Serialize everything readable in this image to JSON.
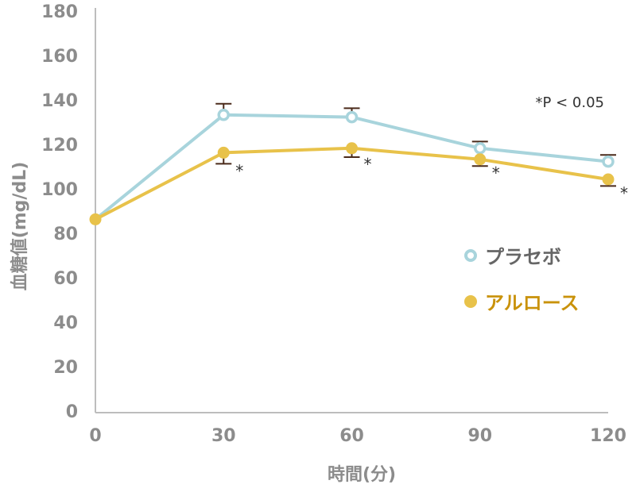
{
  "chart_data": {
    "type": "line",
    "xlabel": "時間(分)",
    "ylabel": "血糖値(mg/dL)",
    "x": [
      0,
      30,
      60,
      90,
      120
    ],
    "xticks": [
      "0",
      "30",
      "60",
      "90",
      "120"
    ],
    "yticks": [
      "0",
      "20",
      "40",
      "60",
      "80",
      "100",
      "120",
      "140",
      "160",
      "180"
    ],
    "xlim": [
      0,
      120
    ],
    "ylim": [
      0,
      180
    ],
    "grid": false,
    "legend_position": "right",
    "annotation": "*P < 0.05",
    "significance_marker": "*",
    "significant_x": [
      30,
      60,
      90,
      120
    ],
    "series": [
      {
        "name": "プラセボ",
        "values": [
          87,
          134,
          133,
          119,
          113
        ],
        "error": [
          0,
          5,
          4,
          3,
          3
        ],
        "error_direction": "up",
        "color": "#a8d4dc",
        "marker": "open-circle"
      },
      {
        "name": "アルロース",
        "values": [
          87,
          117,
          119,
          114,
          105
        ],
        "error": [
          0,
          5,
          4,
          3,
          3
        ],
        "error_direction": "down",
        "color": "#e8c24a",
        "marker": "filled-circle"
      }
    ]
  },
  "colors": {
    "axis": "#bdbdbd",
    "tick_text": "#8c8c8c",
    "error_bar": "#4a2a1a",
    "legend_placebo_text": "#666666",
    "legend_allulose_text": "#c9920a"
  }
}
